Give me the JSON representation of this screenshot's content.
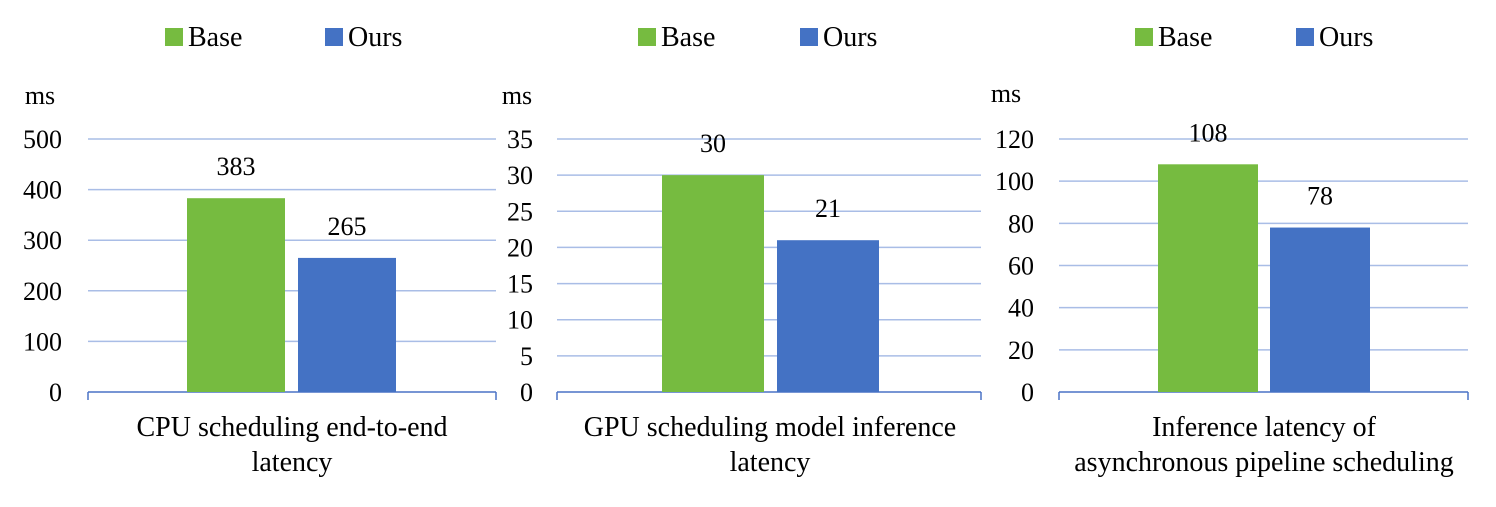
{
  "chart_data": [
    {
      "type": "bar",
      "ylabel": "ms",
      "categories": [
        "CPU scheduling end-to-end latency"
      ],
      "category_lines": [
        "CPU scheduling end-to-end",
        "latency"
      ],
      "series": [
        {
          "name": "Base",
          "values": [
            383
          ],
          "color": "#76bb40"
        },
        {
          "name": "Ours",
          "values": [
            265
          ],
          "color": "#4472c4"
        }
      ],
      "ylim": [
        0,
        500
      ],
      "yticks": [
        0,
        100,
        200,
        300,
        400,
        500
      ],
      "grid": true,
      "legend": "top"
    },
    {
      "type": "bar",
      "ylabel": "ms",
      "categories": [
        "GPU scheduling model inference latency"
      ],
      "category_lines": [
        "GPU scheduling model inference",
        "latency"
      ],
      "series": [
        {
          "name": "Base",
          "values": [
            30
          ],
          "color": "#76bb40"
        },
        {
          "name": "Ours",
          "values": [
            21
          ],
          "color": "#4472c4"
        }
      ],
      "ylim": [
        0,
        35
      ],
      "yticks": [
        0,
        5,
        10,
        15,
        20,
        25,
        30,
        35
      ],
      "grid": true,
      "legend": "top"
    },
    {
      "type": "bar",
      "ylabel": "ms",
      "categories": [
        "Inference latency of asynchronous pipeline scheduling"
      ],
      "category_lines": [
        "Inference latency of",
        "asynchronous pipeline scheduling"
      ],
      "series": [
        {
          "name": "Base",
          "values": [
            108
          ],
          "color": "#76bb40"
        },
        {
          "name": "Ours",
          "values": [
            78
          ],
          "color": "#4472c4"
        }
      ],
      "ylim": [
        0,
        120
      ],
      "yticks": [
        0,
        20,
        40,
        60,
        80,
        100,
        120
      ],
      "grid": true,
      "legend": "top"
    }
  ]
}
